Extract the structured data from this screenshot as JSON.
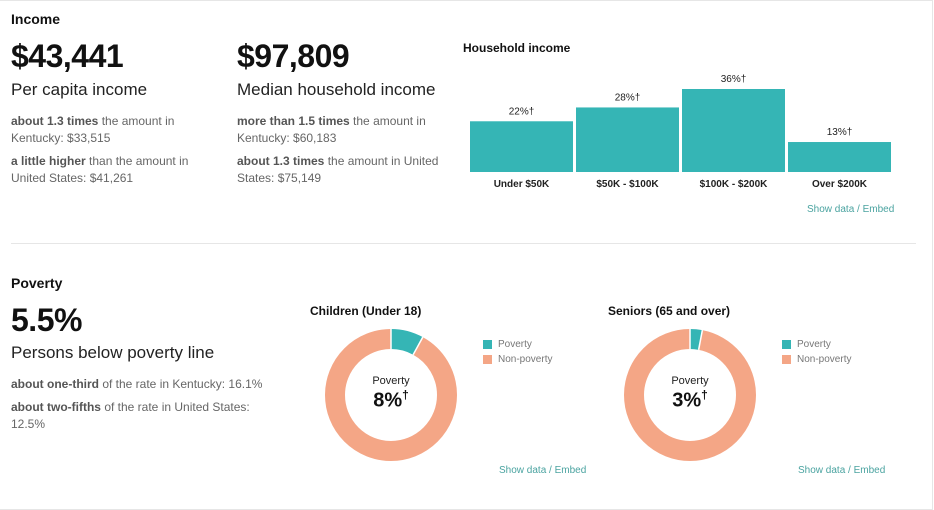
{
  "income": {
    "section_title": "Income",
    "per_capita": {
      "value": "$43,441",
      "label": "Per capita income",
      "compare1_strong": "about 1.3 times",
      "compare1_rest": " the amount in Kentucky: $33,515",
      "compare2_strong": "a little higher",
      "compare2_rest": " than the amount in United States: $41,261"
    },
    "median_household": {
      "value": "$97,809",
      "label": "Median household income",
      "compare1_strong": "more than 1.5 times",
      "compare1_rest": " the amount in Kentucky: $60,183",
      "compare2_strong": "about 1.3 times",
      "compare2_rest": " the amount in United States: $75,149"
    },
    "show_data": "Show data / Embed"
  },
  "poverty": {
    "section_title": "Poverty",
    "value": "5.5%",
    "label": "Persons below poverty line",
    "compare1_strong": "about one-third",
    "compare1_rest": " of the rate in Kentucky: 16.1%",
    "compare2_strong": "about two-fifths",
    "compare2_rest": " of the rate in United States: 12.5%",
    "show_data": "Show data / Embed"
  },
  "colors": {
    "teal": "#35b5b5",
    "salmon": "#f4a686"
  },
  "chart_data": [
    {
      "type": "bar",
      "title": "Household income",
      "categories": [
        "Under $50K",
        "$50K - $100K",
        "$100K - $200K",
        "Over $200K"
      ],
      "values": [
        22,
        28,
        36,
        13
      ],
      "data_labels": [
        "22%†",
        "28%†",
        "36%†",
        "13%†"
      ],
      "ylim": [
        0,
        36
      ],
      "grid": false
    },
    {
      "type": "pie",
      "title": "Children (Under 18)",
      "categories": [
        "Poverty",
        "Non-poverty"
      ],
      "values": [
        8,
        92
      ],
      "center_caption": "Poverty",
      "center_value": "8%",
      "center_mark": "†",
      "legend": "right"
    },
    {
      "type": "pie",
      "title": "Seniors (65 and over)",
      "categories": [
        "Poverty",
        "Non-poverty"
      ],
      "values": [
        3,
        97
      ],
      "center_caption": "Poverty",
      "center_value": "3%",
      "center_mark": "†",
      "legend": "right"
    }
  ]
}
